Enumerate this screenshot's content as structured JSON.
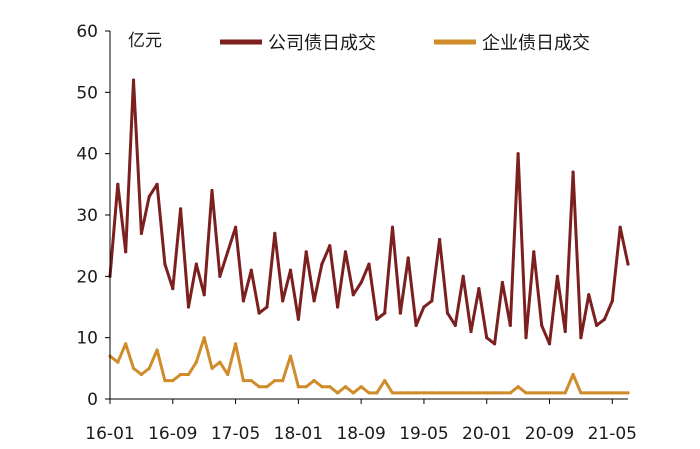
{
  "chart_data": {
    "type": "line",
    "title": "",
    "xlabel": "",
    "ylabel": "亿元",
    "ylim": [
      0,
      60
    ],
    "y_ticks": [
      0,
      10,
      20,
      30,
      40,
      50,
      60
    ],
    "x_tick_labels": [
      "16-01",
      "16-09",
      "17-05",
      "18-01",
      "18-09",
      "19-05",
      "20-01",
      "20-09",
      "21-05"
    ],
    "grid": false,
    "legend_position": "top",
    "colors": {
      "公司债日成交": "#7b1f1f",
      "企业债日成交": "#d08c2a"
    },
    "x": [
      "16-01",
      "16-02",
      "16-03",
      "16-04",
      "16-05",
      "16-06",
      "16-07",
      "16-08",
      "16-09",
      "16-10",
      "16-11",
      "16-12",
      "17-01",
      "17-02",
      "17-03",
      "17-04",
      "17-05",
      "17-06",
      "17-07",
      "17-08",
      "17-09",
      "17-10",
      "17-11",
      "17-12",
      "18-01",
      "18-02",
      "18-03",
      "18-04",
      "18-05",
      "18-06",
      "18-07",
      "18-08",
      "18-09",
      "18-10",
      "18-11",
      "18-12",
      "19-01",
      "19-02",
      "19-03",
      "19-04",
      "19-05",
      "19-06",
      "19-07",
      "19-08",
      "19-09",
      "19-10",
      "19-11",
      "19-12",
      "20-01",
      "20-02",
      "20-03",
      "20-04",
      "20-05",
      "20-06",
      "20-07",
      "20-08",
      "20-09",
      "20-10",
      "20-11",
      "20-12",
      "21-01",
      "21-02",
      "21-03",
      "21-04",
      "21-05",
      "21-06",
      "21-07"
    ],
    "series": [
      {
        "name": "公司债日成交",
        "values": [
          20,
          35,
          24,
          52,
          27,
          33,
          35,
          22,
          18,
          31,
          15,
          22,
          17,
          34,
          20,
          24,
          28,
          16,
          21,
          14,
          15,
          27,
          16,
          21,
          13,
          24,
          16,
          22,
          25,
          15,
          24,
          17,
          19,
          22,
          13,
          14,
          28,
          14,
          23,
          12,
          15,
          16,
          26,
          14,
          12,
          20,
          11,
          18,
          10,
          9,
          19,
          12,
          40,
          10,
          24,
          12,
          9,
          20,
          11,
          37,
          10,
          17,
          12,
          13,
          16,
          28,
          22
        ]
      },
      {
        "name": "企业债日成交",
        "values": [
          7,
          6,
          9,
          5,
          4,
          5,
          8,
          3,
          3,
          4,
          4,
          6,
          10,
          5,
          6,
          4,
          9,
          3,
          3,
          2,
          2,
          3,
          3,
          7,
          2,
          2,
          3,
          2,
          2,
          1,
          2,
          1,
          2,
          1,
          1,
          3,
          1,
          1,
          1,
          1,
          1,
          1,
          1,
          1,
          1,
          1,
          1,
          1,
          1,
          1,
          1,
          1,
          2,
          1,
          1,
          1,
          1,
          1,
          1,
          4,
          1,
          1,
          1,
          1,
          1,
          1,
          1
        ]
      }
    ]
  }
}
